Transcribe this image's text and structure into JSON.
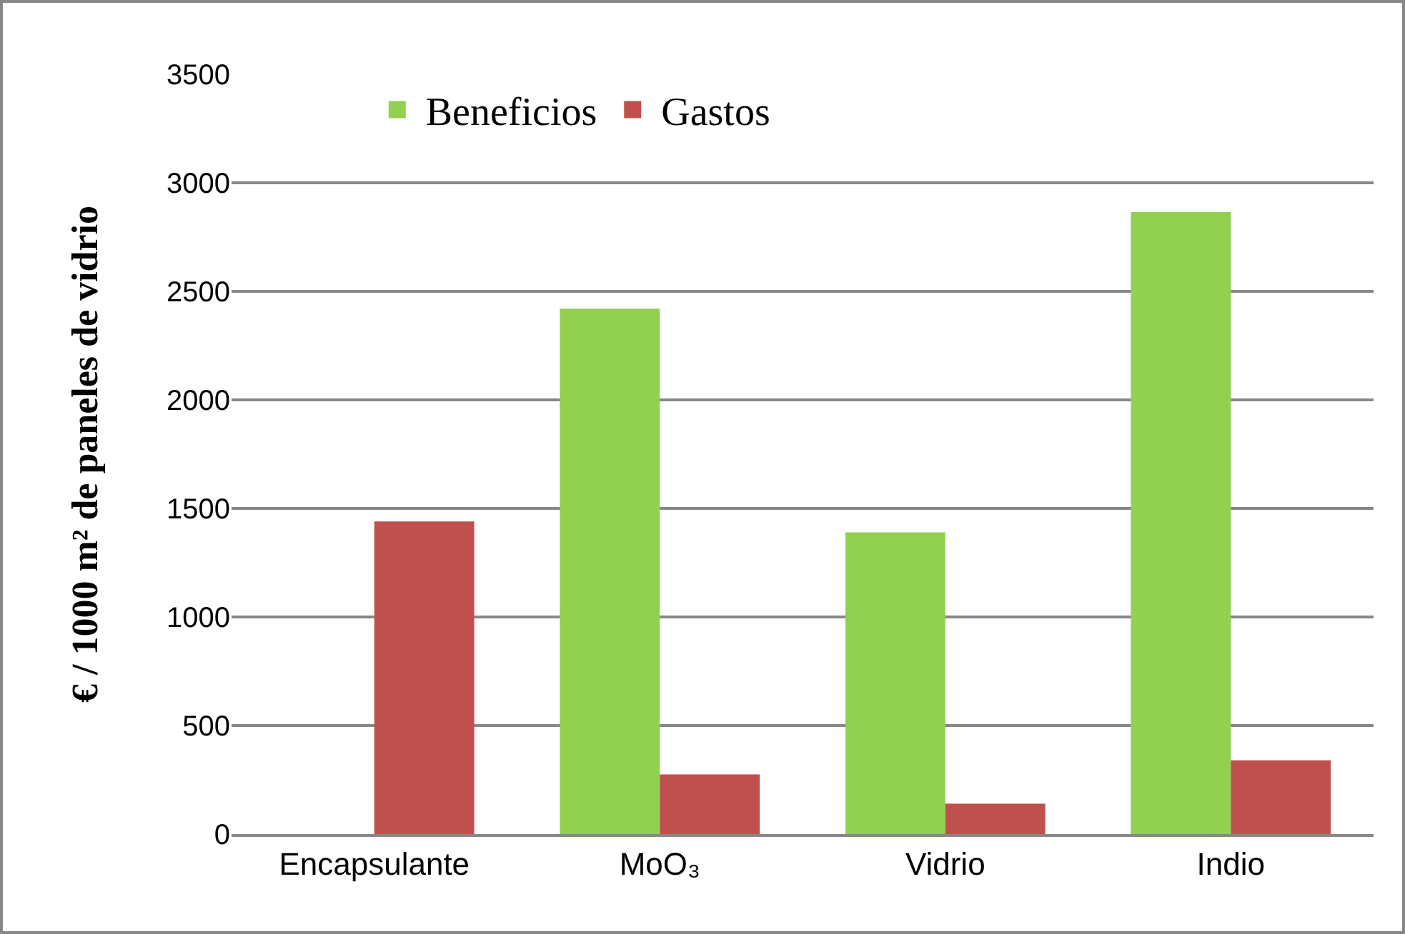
{
  "chart_data": {
    "type": "bar",
    "ylabel": "€ / 1000 m² de paneles de vidrio",
    "categories": [
      "Encapsulante",
      "MoO₃",
      "Vidrio",
      "Indio"
    ],
    "series": [
      {
        "name": "Beneficios",
        "color": "#92d050",
        "values": [
          0,
          2420,
          1390,
          2865
        ]
      },
      {
        "name": "Gastos",
        "color": "#c0504d",
        "values": [
          1440,
          275,
          140,
          340
        ]
      }
    ],
    "ylim": [
      0,
      3500
    ],
    "yticks": [
      0,
      500,
      1000,
      1500,
      2000,
      2500,
      3000,
      3500
    ],
    "grid": "y",
    "legend": "top"
  }
}
